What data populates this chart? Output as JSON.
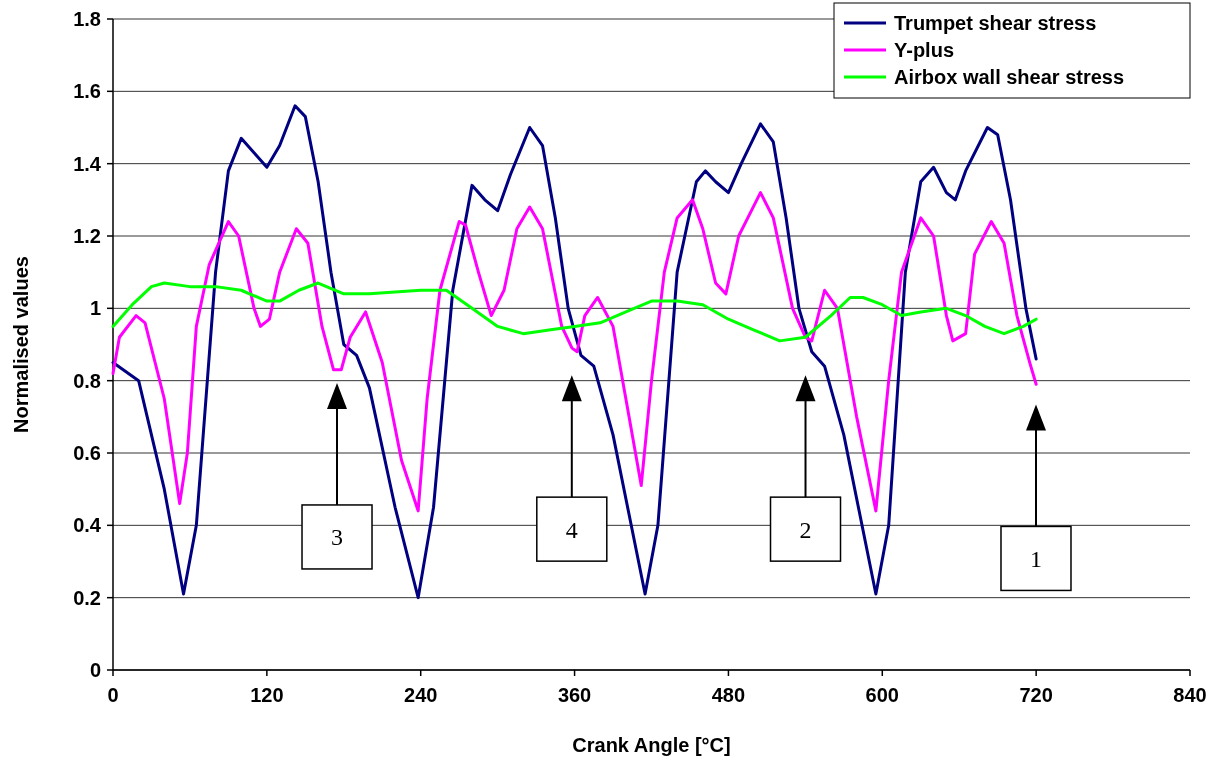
{
  "chart_data": {
    "type": "line",
    "xlabel": "Crank Angle [°C]",
    "ylabel": "Normalised values",
    "xlim": [
      0,
      840
    ],
    "xticks": [
      0,
      120,
      240,
      360,
      480,
      600,
      720,
      840
    ],
    "ylim": [
      0,
      1.8
    ],
    "yticks": [
      0,
      0.2,
      0.4,
      0.6,
      0.8,
      1,
      1.2,
      1.4,
      1.6,
      1.8
    ],
    "grid": "y",
    "legend": "top right",
    "line_style": "solid",
    "marker": "none",
    "series": [
      {
        "name": "Trumpet shear stress",
        "color": "#000080",
        "x": [
          0,
          20,
          40,
          55,
          65,
          80,
          90,
          100,
          110,
          120,
          130,
          142,
          150,
          160,
          170,
          180,
          190,
          200,
          220,
          238,
          250,
          265,
          280,
          290,
          300,
          310,
          325,
          335,
          345,
          355,
          365,
          375,
          390,
          415,
          425,
          440,
          455,
          462,
          470,
          480,
          490,
          505,
          515,
          525,
          535,
          545,
          555,
          570,
          595,
          605,
          618,
          630,
          640,
          650,
          657,
          665,
          682,
          690,
          700,
          712,
          720
        ],
        "values": [
          0.85,
          0.8,
          0.5,
          0.21,
          0.4,
          1.1,
          1.38,
          1.47,
          1.43,
          1.39,
          1.45,
          1.56,
          1.53,
          1.35,
          1.1,
          0.9,
          0.87,
          0.78,
          0.45,
          0.2,
          0.45,
          1.05,
          1.34,
          1.3,
          1.27,
          1.37,
          1.5,
          1.45,
          1.25,
          1,
          0.87,
          0.84,
          0.65,
          0.21,
          0.4,
          1.1,
          1.35,
          1.38,
          1.35,
          1.32,
          1.4,
          1.51,
          1.46,
          1.25,
          1,
          0.88,
          0.84,
          0.65,
          0.21,
          0.4,
          1.1,
          1.35,
          1.39,
          1.32,
          1.3,
          1.38,
          1.5,
          1.48,
          1.3,
          1,
          0.86
        ]
      },
      {
        "name": "Y-plus",
        "color": "#ff00ff",
        "x": [
          0,
          5,
          18,
          25,
          40,
          52,
          58,
          65,
          75,
          90,
          98,
          110,
          115,
          122,
          130,
          143,
          152,
          163,
          172,
          178,
          185,
          197,
          210,
          225,
          238,
          245,
          255,
          270,
          275,
          285,
          295,
          305,
          315,
          325,
          335,
          350,
          358,
          362,
          368,
          378,
          390,
          400,
          412,
          420,
          430,
          440,
          452,
          460,
          470,
          478,
          488,
          505,
          515,
          530,
          540,
          545,
          555,
          565,
          580,
          595,
          605,
          615,
          630,
          640,
          650,
          655,
          665,
          672,
          685,
          695,
          705,
          715,
          720
        ],
        "values": [
          0.82,
          0.92,
          0.98,
          0.96,
          0.75,
          0.46,
          0.6,
          0.95,
          1.12,
          1.24,
          1.2,
          1,
          0.95,
          0.97,
          1.1,
          1.22,
          1.18,
          0.95,
          0.83,
          0.83,
          0.92,
          0.99,
          0.85,
          0.58,
          0.44,
          0.75,
          1.05,
          1.24,
          1.23,
          1.1,
          0.98,
          1.05,
          1.22,
          1.28,
          1.22,
          0.95,
          0.89,
          0.88,
          0.98,
          1.03,
          0.95,
          0.75,
          0.51,
          0.8,
          1.1,
          1.25,
          1.3,
          1.22,
          1.07,
          1.04,
          1.2,
          1.32,
          1.25,
          1,
          0.92,
          0.91,
          1.05,
          1,
          0.7,
          0.44,
          0.8,
          1.1,
          1.25,
          1.2,
          0.98,
          0.91,
          0.93,
          1.15,
          1.24,
          1.18,
          0.98,
          0.85,
          0.79
        ]
      },
      {
        "name": "Airbox wall shear stress",
        "color": "#00ff00",
        "x": [
          0,
          15,
          30,
          40,
          60,
          80,
          100,
          120,
          130,
          145,
          160,
          180,
          200,
          240,
          260,
          280,
          300,
          320,
          340,
          360,
          380,
          400,
          420,
          440,
          460,
          480,
          500,
          520,
          540,
          560,
          575,
          585,
          600,
          615,
          630,
          650,
          665,
          680,
          695,
          710,
          720
        ],
        "values": [
          0.95,
          1.01,
          1.06,
          1.07,
          1.06,
          1.06,
          1.05,
          1.02,
          1.02,
          1.05,
          1.07,
          1.04,
          1.04,
          1.05,
          1.05,
          1,
          0.95,
          0.93,
          0.94,
          0.95,
          0.96,
          0.99,
          1.02,
          1.02,
          1.01,
          0.97,
          0.94,
          0.91,
          0.92,
          0.98,
          1.03,
          1.03,
          1.01,
          0.98,
          0.99,
          1,
          0.98,
          0.95,
          0.93,
          0.95,
          0.97
        ]
      }
    ],
    "annotations": [
      "3",
      "4",
      "2",
      "1"
    ]
  }
}
